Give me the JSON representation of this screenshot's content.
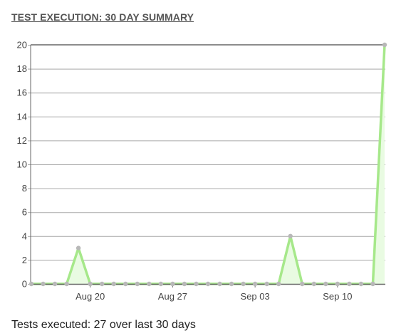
{
  "widget": {
    "title": "TEST EXECUTION: 30 DAY SUMMARY"
  },
  "summary": {
    "text": "Tests executed: 27 over last 30 days"
  },
  "colors": {
    "line": "#a6e88a",
    "fill": "#e9fbe2",
    "point": "#b8b8b8",
    "grid": "#a9a9a9",
    "axis": "#666666"
  },
  "chart_data": {
    "type": "area",
    "x": [
      "2018-08-15",
      "2018-08-16",
      "2018-08-17",
      "2018-08-18",
      "2018-08-19",
      "2018-08-20",
      "2018-08-21",
      "2018-08-22",
      "2018-08-23",
      "2018-08-24",
      "2018-08-25",
      "2018-08-26",
      "2018-08-27",
      "2018-08-28",
      "2018-08-29",
      "2018-08-30",
      "2018-08-31",
      "2018-09-01",
      "2018-09-02",
      "2018-09-03",
      "2018-09-04",
      "2018-09-05",
      "2018-09-06",
      "2018-09-07",
      "2018-09-08",
      "2018-09-09",
      "2018-09-10",
      "2018-09-11",
      "2018-09-12",
      "2018-09-13",
      "2018-09-14"
    ],
    "series": [
      {
        "values": [
          0,
          0,
          0,
          0,
          3,
          0,
          0,
          0,
          0,
          0,
          0,
          0,
          0,
          0,
          0,
          0,
          0,
          0,
          0,
          0,
          0,
          0,
          4,
          0,
          0,
          0,
          0,
          0,
          0,
          0,
          20
        ]
      }
    ],
    "x_ticks": [
      {
        "date": "2018-08-20",
        "label": "Aug 20"
      },
      {
        "date": "2018-08-27",
        "label": "Aug 27"
      },
      {
        "date": "2018-09-03",
        "label": "Sep 03"
      },
      {
        "date": "2018-09-10",
        "label": "Sep 10"
      }
    ],
    "y_ticks": [
      0,
      2,
      4,
      6,
      8,
      10,
      12,
      14,
      16,
      18,
      20
    ],
    "ylim": [
      0,
      20
    ],
    "title": "",
    "xlabel": "",
    "ylabel": "",
    "grid": "horizontal",
    "legend": "none"
  }
}
